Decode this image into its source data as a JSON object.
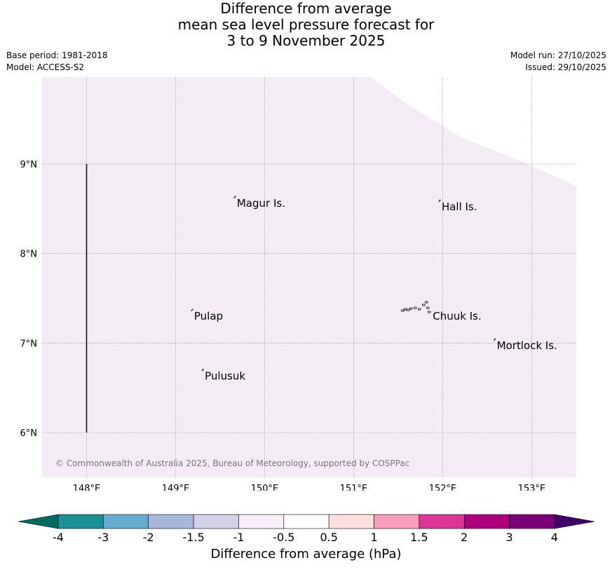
{
  "title": {
    "line1": "Difference from average",
    "line2": "mean sea level pressure forecast for",
    "line3": "3 to 9 November 2025"
  },
  "meta": {
    "base_period": "Base period: 1981-2018",
    "model": "Model: ACCESS-S2",
    "model_run": "Model run: 27/10/2025",
    "issued": "Issued: 29/10/2025"
  },
  "map": {
    "background_color": "#f3ecf5",
    "lon_range": [
      147.5,
      153.5
    ],
    "lat_range": [
      5.5,
      9.97
    ],
    "lon_ticks": [
      {
        "value": 148,
        "label": "148°E"
      },
      {
        "value": 149,
        "label": "149°E"
      },
      {
        "value": 150,
        "label": "150°E"
      },
      {
        "value": 151,
        "label": "151°E"
      },
      {
        "value": 152,
        "label": "152°E"
      },
      {
        "value": 153,
        "label": "153°E"
      }
    ],
    "lat_ticks": [
      {
        "value": 9,
        "label": "9°N"
      },
      {
        "value": 8,
        "label": "8°N"
      },
      {
        "value": 7,
        "label": "7°N"
      },
      {
        "value": 6,
        "label": "6°N"
      }
    ],
    "boundary_line": {
      "lon": 148,
      "lat_from": 6,
      "lat_to": 9
    },
    "no_data_edge": [
      [
        151.2,
        9.97
      ],
      [
        151.55,
        9.7
      ],
      [
        152.2,
        9.3
      ],
      [
        153.0,
        8.98
      ],
      [
        153.5,
        8.75
      ]
    ],
    "places": [
      {
        "name": "Magur Is.",
        "lon": 149.68,
        "lat": 8.56
      },
      {
        "name": "Hall Is.",
        "lon": 151.98,
        "lat": 8.52
      },
      {
        "name": "Pulap",
        "lon": 149.2,
        "lat": 7.3
      },
      {
        "name": "Chuuk Is.",
        "lon": 151.88,
        "lat": 7.3
      },
      {
        "name": "Mortlock Is.",
        "lon": 152.6,
        "lat": 6.97
      },
      {
        "name": "Pulusuk",
        "lon": 149.32,
        "lat": 6.63
      }
    ],
    "copyright": "© Commonwealth of Australia 2025, Bureau of Meteorology, supported by COSPPac"
  },
  "colorbar": {
    "title": "Difference from average (hPa)",
    "low_extend_color": "#006b5f",
    "high_extend_color": "#3f0066",
    "bins": [
      {
        "color": "#1b9197"
      },
      {
        "color": "#67abd0"
      },
      {
        "color": "#a8b8da"
      },
      {
        "color": "#d3d1e6"
      },
      {
        "color": "#f6eff7"
      },
      {
        "color": "#ffffff"
      },
      {
        "color": "#fde0dd"
      },
      {
        "color": "#f99fbb"
      },
      {
        "color": "#dd3597"
      },
      {
        "color": "#ae017e"
      },
      {
        "color": "#7b0178"
      }
    ],
    "tick_labels": [
      "-4",
      "-3",
      "-2",
      "-1.5",
      "-1",
      "-0.5",
      "0.5",
      "1",
      "1.5",
      "2",
      "3",
      "4"
    ]
  }
}
